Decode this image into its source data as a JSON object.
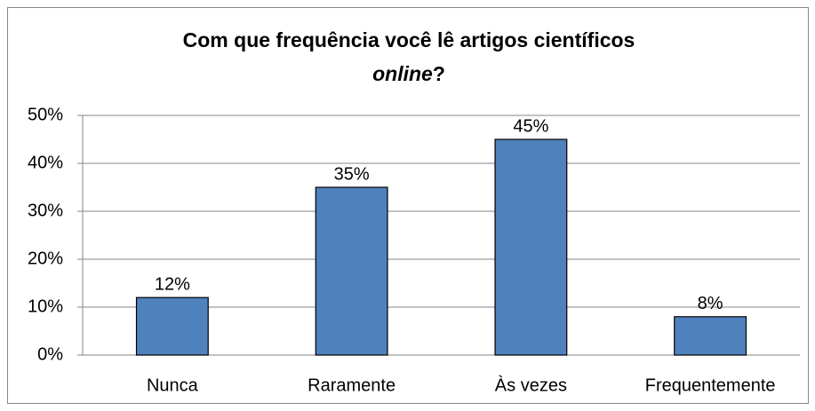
{
  "chart_data": {
    "type": "bar",
    "title": [
      "Com que frequência você lê artigos científicos",
      "online",
      "?"
    ],
    "categories": [
      "Nunca",
      "Raramente",
      "Às vezes",
      "Frequentemente"
    ],
    "values": [
      12,
      35,
      45,
      8
    ],
    "value_labels": [
      "12%",
      "35%",
      "45%",
      "8%"
    ],
    "color": "#4f81bd",
    "ylim": [
      0,
      50
    ],
    "yticks": [
      {
        "value": 0,
        "label": "0%"
      },
      {
        "value": 10,
        "label": "10%"
      },
      {
        "value": 20,
        "label": "20%"
      },
      {
        "value": 30,
        "label": "30%"
      },
      {
        "value": 40,
        "label": "40%"
      },
      {
        "value": 50,
        "label": "50%"
      }
    ],
    "grid": true
  }
}
